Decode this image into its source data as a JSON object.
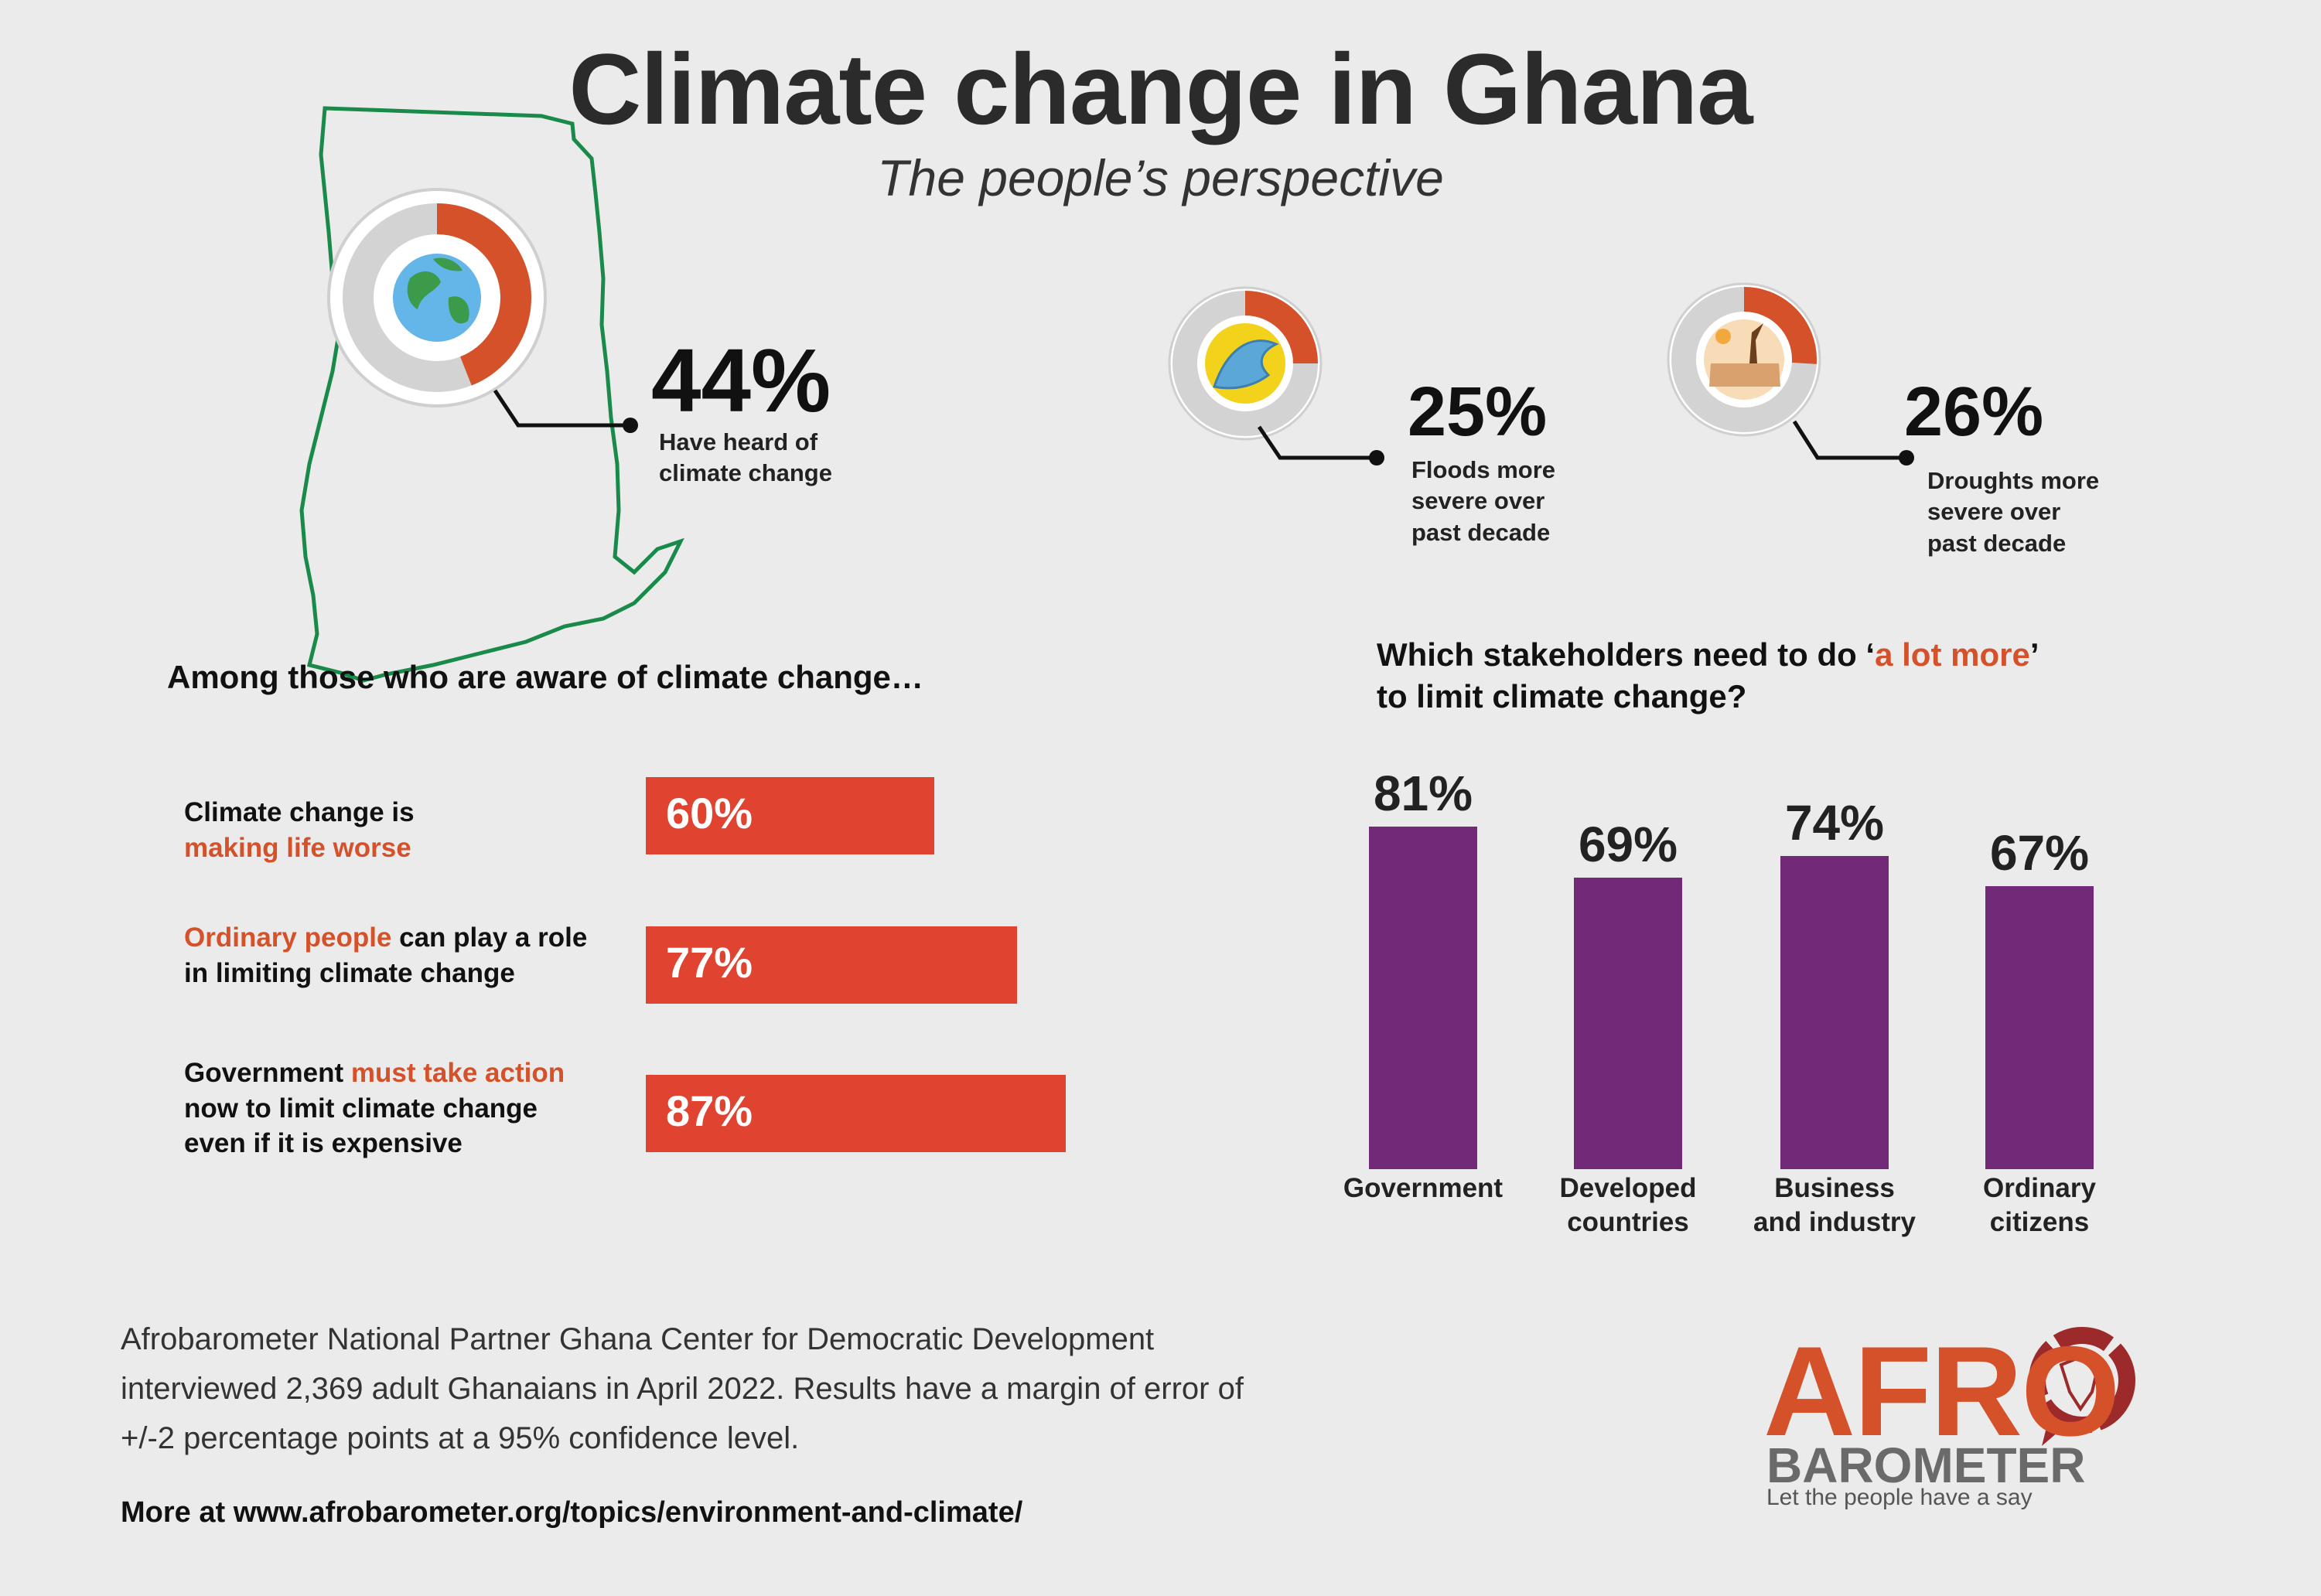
{
  "title": "Climate change in Ghana",
  "subtitle": "The people’s perspective",
  "colors": {
    "orange": "#d5512a",
    "bar_red": "#e04430",
    "purple": "#722a78",
    "map_green": "#1a8a4a",
    "ring_grey": "#d3d3d3"
  },
  "icons": {
    "heard": "earth-globe-icon",
    "floods": "wave-icon",
    "droughts": "drought-icon"
  },
  "stats": {
    "heard": {
      "value": "44%",
      "fraction": 0.44,
      "label_1": "Have heard of",
      "label_2": "climate change"
    },
    "floods": {
      "value": "25%",
      "fraction": 0.25,
      "label_1": "Floods more",
      "label_2": "severe over",
      "label_3": "past decade"
    },
    "droughts": {
      "value": "26%",
      "fraction": 0.26,
      "label_1": "Droughts more",
      "label_2": "severe over",
      "label_3": "past decade"
    }
  },
  "aware_section": {
    "heading": "Among those who are aware of climate change…",
    "items": [
      {
        "p1": "Climate change is",
        "p2": "",
        "p3": "making life worse",
        "p4": "",
        "value_label": "60%"
      },
      {
        "p1": "",
        "p2": "Ordinary people",
        "p3": " can play a role",
        "p4": "in limiting climate change",
        "value_label": "77%"
      },
      {
        "p1": "Government ",
        "p2": "must take action",
        "p3": "now to limit climate change",
        "p4": "even if it is expensive",
        "value_label": "87%"
      }
    ]
  },
  "stakeholder_section": {
    "heading_a": "Which stakeholders need to do ‘",
    "heading_highlight": "a lot more",
    "heading_b": "’",
    "heading_line2": "to limit climate change?"
  },
  "chart_data": [
    {
      "type": "bar",
      "orientation": "horizontal",
      "categories": [
        "Climate change is making life worse",
        "Ordinary people can play a role in limiting climate change",
        "Government must take action now to limit climate change even if it is expensive"
      ],
      "values": [
        60,
        77,
        87
      ]
    },
    {
      "type": "bar",
      "categories": [
        "Government",
        "Developed countries",
        "Business and industry",
        "Ordinary citizens"
      ],
      "category_lines": [
        [
          "Government",
          ""
        ],
        [
          "Developed",
          "countries"
        ],
        [
          "Business",
          "and industry"
        ],
        [
          "Ordinary",
          "citizens"
        ]
      ],
      "values": [
        81,
        69,
        74,
        67
      ],
      "value_labels": [
        "81%",
        "69%",
        "74%",
        "67%"
      ]
    }
  ],
  "footer": {
    "note_1": "Afrobarometer National Partner Ghana Center for Democratic Development",
    "note_2": "interviewed 2,369 adult Ghanaians in April 2022. Results have a margin of error of",
    "note_3": "+/-2 percentage points at a 95% confidence level.",
    "more": "More at www.afrobarometer.org/topics/environment-and-climate/"
  },
  "logo": {
    "afro": "AFRO",
    "barometer": "BAROMETER",
    "tagline": "Let the people have a say"
  }
}
